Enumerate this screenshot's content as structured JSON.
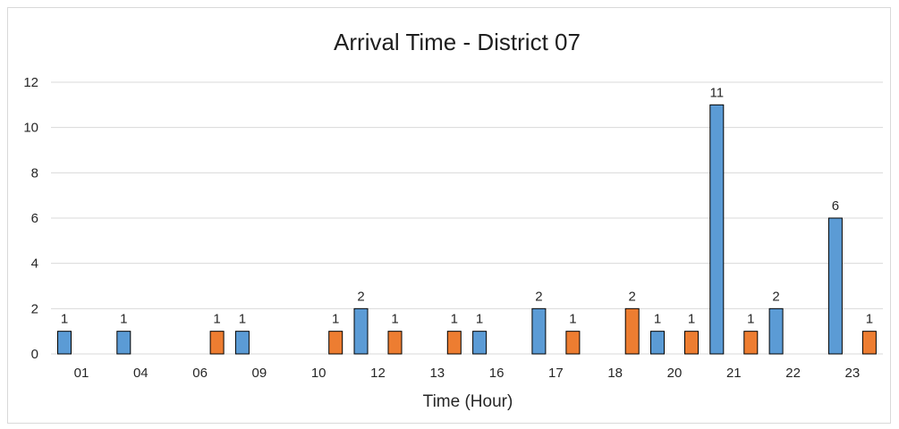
{
  "chart_data": {
    "type": "bar",
    "title": "Arrival Time - District 07",
    "xlabel": "Time (Hour)",
    "ylabel": "",
    "ylim": [
      0,
      12
    ],
    "yticks": [
      0,
      2,
      4,
      6,
      8,
      10,
      12
    ],
    "grid": true,
    "legend": "none",
    "categories": [
      "01",
      "04",
      "06",
      "09",
      "10",
      "12",
      "13",
      "16",
      "17",
      "18",
      "20",
      "21",
      "22",
      "23"
    ],
    "series": [
      {
        "color": "#5b9bd5",
        "values": [
          1,
          1,
          null,
          1,
          null,
          2,
          null,
          1,
          2,
          null,
          1,
          11,
          2,
          6
        ]
      },
      {
        "color": "#ed7d31",
        "values": [
          null,
          null,
          1,
          null,
          1,
          1,
          1,
          null,
          1,
          2,
          1,
          1,
          null,
          1
        ]
      }
    ]
  }
}
